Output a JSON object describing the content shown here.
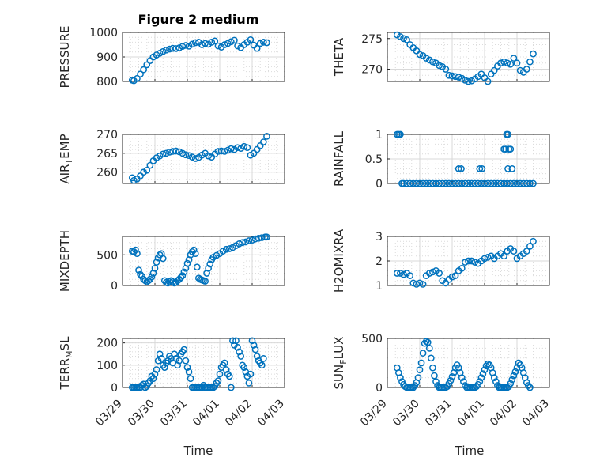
{
  "figure_title": "Figure 2 medium",
  "chart_data": [
    {
      "type": "scatter",
      "ylabel": "PRESSURE",
      "title": "Figure 2 medium",
      "xlim": [
        "03/29",
        "04/03"
      ],
      "ylim": [
        800,
        1000
      ],
      "yticks": [
        800,
        900,
        1000
      ],
      "grid": true,
      "minor_grid": true,
      "x": [
        0.3,
        0.35,
        0.45,
        0.55,
        0.65,
        0.75,
        0.85,
        0.95,
        1.05,
        1.15,
        1.25,
        1.35,
        1.45,
        1.55,
        1.65,
        1.75,
        1.85,
        1.95,
        2.05,
        2.15,
        2.25,
        2.35,
        2.45,
        2.55,
        2.65,
        2.75,
        2.85,
        2.95,
        3.05,
        3.15,
        3.25,
        3.35,
        3.45,
        3.55,
        3.65,
        3.75,
        3.85,
        3.95,
        4.05,
        4.15,
        4.25,
        4.35,
        4.45
      ],
      "y": [
        805,
        803,
        812,
        830,
        848,
        868,
        885,
        900,
        908,
        915,
        922,
        928,
        932,
        935,
        934,
        937,
        943,
        947,
        944,
        952,
        958,
        960,
        950,
        955,
        952,
        960,
        965,
        945,
        940,
        950,
        955,
        962,
        968,
        945,
        938,
        950,
        960,
        970,
        948,
        935,
        955,
        960,
        958
      ]
    },
    {
      "type": "scatter",
      "ylabel": "THETA",
      "xlim": [
        "03/29",
        "04/03"
      ],
      "ylim": [
        268,
        276
      ],
      "yticks": [
        270,
        275
      ],
      "grid": true,
      "minor_grid": true,
      "x": [
        0.3,
        0.4,
        0.5,
        0.6,
        0.7,
        0.8,
        0.9,
        1.0,
        1.1,
        1.2,
        1.3,
        1.4,
        1.5,
        1.6,
        1.7,
        1.8,
        1.9,
        2.0,
        2.1,
        2.2,
        2.3,
        2.4,
        2.5,
        2.6,
        2.7,
        2.8,
        2.9,
        3.0,
        3.1,
        3.2,
        3.3,
        3.4,
        3.5,
        3.6,
        3.7,
        3.8,
        3.9,
        4.0,
        4.1,
        4.2,
        4.3,
        4.4,
        4.5
      ],
      "y": [
        275.6,
        275.3,
        275,
        274.8,
        274,
        273.5,
        273,
        272.4,
        272.2,
        271.8,
        271.5,
        271.2,
        271,
        270.6,
        270.4,
        270,
        269,
        268.9,
        268.8,
        268.7,
        268.5,
        268.2,
        268,
        268.1,
        268.4,
        268.8,
        269.2,
        268.6,
        268,
        269.2,
        269.8,
        270.5,
        271,
        271.2,
        271,
        270.8,
        271.8,
        271,
        269.8,
        269.5,
        270,
        271.2,
        272.5
      ]
    },
    {
      "type": "scatter",
      "ylabel": "AIR_TEMP",
      "xlim": [
        "03/29",
        "04/03"
      ],
      "ylim": [
        257,
        270
      ],
      "yticks": [
        260,
        265,
        270
      ],
      "grid": true,
      "minor_grid": true,
      "x": [
        0.3,
        0.35,
        0.45,
        0.55,
        0.65,
        0.75,
        0.85,
        0.95,
        1.05,
        1.15,
        1.25,
        1.35,
        1.45,
        1.55,
        1.65,
        1.75,
        1.85,
        1.95,
        2.05,
        2.15,
        2.25,
        2.35,
        2.45,
        2.55,
        2.65,
        2.75,
        2.85,
        2.95,
        3.05,
        3.15,
        3.25,
        3.35,
        3.45,
        3.55,
        3.65,
        3.75,
        3.85,
        3.95,
        4.05,
        4.15,
        4.25,
        4.35,
        4.45
      ],
      "y": [
        258.5,
        257.8,
        258.2,
        259,
        260,
        260.5,
        261.8,
        263,
        263.8,
        264.3,
        264.8,
        265,
        265.3,
        265.5,
        265.6,
        265.4,
        265.0,
        264.6,
        264.4,
        264.0,
        263.6,
        263.9,
        264.5,
        265,
        264.3,
        264,
        264.8,
        265.5,
        265.6,
        265.5,
        265.8,
        266.2,
        266,
        266.5,
        266.3,
        266.8,
        266.5,
        264.5,
        265,
        266,
        267,
        268,
        269.5
      ]
    },
    {
      "type": "scatter",
      "ylabel": "RAINFALL",
      "xlim": [
        "03/29",
        "04/03"
      ],
      "ylim": [
        0,
        1
      ],
      "yticks": [
        0,
        0.5,
        1
      ],
      "grid": true,
      "minor_grid": true,
      "x": [
        0.3,
        0.35,
        0.4,
        0.45,
        0.5,
        0.6,
        0.7,
        0.8,
        0.9,
        1.0,
        1.1,
        1.2,
        1.3,
        1.4,
        1.5,
        1.6,
        1.7,
        1.8,
        1.9,
        2.0,
        2.1,
        2.2,
        2.3,
        2.4,
        2.5,
        2.6,
        2.7,
        2.8,
        2.9,
        3.0,
        3.1,
        3.2,
        3.3,
        3.4,
        3.5,
        3.6,
        3.7,
        3.8,
        3.9,
        4.0,
        4.1,
        4.2,
        4.3,
        4.4,
        4.5,
        2.2,
        2.28,
        2.85,
        2.92,
        3.6,
        3.65,
        3.68,
        3.72,
        3.75,
        3.8,
        3.85,
        3.72
      ],
      "y": [
        1,
        1,
        1,
        0,
        0,
        0,
        0,
        0,
        0,
        0,
        0,
        0,
        0,
        0,
        0,
        0,
        0,
        0,
        0,
        0,
        0,
        0,
        0,
        0,
        0,
        0,
        0,
        0,
        0,
        0,
        0,
        0,
        0,
        0,
        0,
        0,
        0,
        0,
        0,
        0,
        0,
        0,
        0,
        0,
        0,
        0.3,
        0.3,
        0.3,
        0.3,
        0.7,
        0.7,
        1,
        1,
        0.7,
        0.7,
        0.3,
        0.3
      ]
    },
    {
      "type": "scatter",
      "ylabel": "MIXDEPTH",
      "xlim": [
        "03/29",
        "04/03"
      ],
      "ylim": [
        0,
        800
      ],
      "yticks": [
        0,
        500
      ],
      "grid": true,
      "minor_grid": true,
      "x": [
        0.3,
        0.35,
        0.4,
        0.45,
        0.5,
        0.55,
        0.6,
        0.65,
        0.7,
        0.75,
        0.8,
        0.85,
        0.9,
        0.95,
        1.0,
        1.05,
        1.1,
        1.15,
        1.2,
        1.25,
        1.3,
        1.35,
        1.4,
        1.45,
        1.5,
        1.55,
        1.6,
        1.65,
        1.7,
        1.75,
        1.8,
        1.85,
        1.9,
        1.95,
        2.0,
        2.05,
        2.1,
        2.15,
        2.2,
        2.25,
        2.3,
        2.35,
        2.4,
        2.45,
        2.5,
        2.55,
        2.6,
        2.65,
        2.7,
        2.75,
        2.8,
        2.9,
        3.0,
        3.1,
        3.2,
        3.3,
        3.4,
        3.5,
        3.6,
        3.7,
        3.8,
        3.9,
        4.0,
        4.1,
        4.2,
        4.3,
        4.4,
        4.45
      ],
      "y": [
        560,
        550,
        580,
        520,
        250,
        180,
        150,
        100,
        80,
        60,
        80,
        100,
        140,
        200,
        280,
        380,
        450,
        500,
        520,
        440,
        80,
        50,
        40,
        60,
        80,
        60,
        40,
        50,
        80,
        100,
        130,
        160,
        220,
        280,
        360,
        420,
        500,
        550,
        580,
        520,
        300,
        120,
        100,
        90,
        80,
        70,
        200,
        280,
        350,
        420,
        460,
        490,
        520,
        560,
        590,
        600,
        620,
        650,
        680,
        700,
        710,
        730,
        740,
        760,
        770,
        780,
        790,
        790
      ]
    },
    {
      "type": "scatter",
      "ylabel": "H2OMIXRA",
      "xlim": [
        "03/29",
        "04/03"
      ],
      "ylim": [
        1,
        3
      ],
      "yticks": [
        1,
        2,
        3
      ],
      "grid": true,
      "minor_grid": true,
      "x": [
        0.3,
        0.4,
        0.5,
        0.6,
        0.7,
        0.8,
        0.9,
        1.0,
        1.1,
        1.2,
        1.3,
        1.4,
        1.5,
        1.6,
        1.7,
        1.8,
        1.9,
        2.0,
        2.1,
        2.2,
        2.3,
        2.4,
        2.5,
        2.6,
        2.7,
        2.8,
        2.9,
        3.0,
        3.1,
        3.2,
        3.3,
        3.4,
        3.5,
        3.6,
        3.7,
        3.8,
        3.9,
        4.0,
        4.1,
        4.2,
        4.3,
        4.4,
        4.5
      ],
      "y": [
        1.5,
        1.5,
        1.45,
        1.5,
        1.4,
        1.1,
        1.05,
        1.1,
        1.05,
        1.4,
        1.5,
        1.55,
        1.6,
        1.5,
        1.2,
        1.1,
        1.25,
        1.35,
        1.4,
        1.6,
        1.7,
        1.95,
        2.0,
        2.0,
        1.95,
        1.9,
        2.0,
        2.1,
        2.15,
        2.2,
        2.1,
        2.2,
        2.3,
        2.2,
        2.4,
        2.5,
        2.4,
        2.1,
        2.2,
        2.3,
        2.4,
        2.6,
        2.8
      ]
    },
    {
      "type": "scatter",
      "ylabel": "TERR_MSL",
      "xlim": [
        "03/29",
        "04/03"
      ],
      "ylim": [
        0,
        220
      ],
      "yticks": [
        0,
        100,
        200
      ],
      "grid": true,
      "minor_grid": true,
      "x": [
        0.3,
        0.35,
        0.4,
        0.45,
        0.5,
        0.55,
        0.6,
        0.65,
        0.7,
        0.75,
        0.8,
        0.85,
        0.9,
        0.95,
        1.0,
        1.05,
        1.1,
        1.15,
        1.2,
        1.25,
        1.3,
        1.35,
        1.4,
        1.45,
        1.5,
        1.55,
        1.6,
        1.65,
        1.7,
        1.75,
        1.8,
        1.85,
        1.9,
        1.95,
        2.0,
        2.05,
        2.1,
        2.15,
        2.2,
        2.25,
        2.3,
        2.35,
        2.4,
        2.45,
        2.5,
        2.55,
        2.6,
        2.65,
        2.7,
        2.75,
        2.8,
        2.85,
        2.9,
        2.95,
        3.0,
        3.05,
        3.1,
        3.15,
        3.2,
        3.25,
        3.3,
        3.35,
        3.4,
        3.45,
        3.5,
        3.55,
        3.6,
        3.65,
        3.7,
        3.75,
        3.8,
        3.85,
        3.9,
        3.95,
        4.0,
        4.05,
        4.1,
        4.15,
        4.2,
        4.25,
        4.3,
        4.35
      ],
      "y": [
        0,
        0,
        0,
        0,
        0,
        0,
        10,
        15,
        0,
        5,
        20,
        30,
        50,
        40,
        60,
        80,
        120,
        150,
        130,
        100,
        90,
        110,
        120,
        140,
        130,
        110,
        150,
        130,
        100,
        120,
        150,
        160,
        170,
        120,
        90,
        70,
        40,
        0,
        0,
        0,
        0,
        0,
        0,
        0,
        10,
        0,
        0,
        0,
        0,
        0,
        0,
        5,
        20,
        30,
        60,
        90,
        100,
        110,
        80,
        60,
        50,
        0,
        210,
        190,
        210,
        180,
        160,
        140,
        100,
        90,
        70,
        50,
        20,
        60,
        210,
        190,
        170,
        140,
        120,
        110,
        100,
        130
      ]
    },
    {
      "type": "scatter",
      "ylabel": "SUN_FLUX",
      "xlim": [
        "03/29",
        "04/03"
      ],
      "ylim": [
        0,
        500
      ],
      "yticks": [
        0,
        500
      ],
      "grid": true,
      "minor_grid": true,
      "x": [
        0.3,
        0.35,
        0.4,
        0.45,
        0.5,
        0.55,
        0.6,
        0.65,
        0.7,
        0.75,
        0.8,
        0.85,
        0.9,
        0.95,
        1.0,
        1.05,
        1.1,
        1.15,
        1.2,
        1.25,
        1.3,
        1.35,
        1.4,
        1.45,
        1.5,
        1.55,
        1.6,
        1.65,
        1.7,
        1.75,
        1.8,
        1.85,
        1.9,
        1.95,
        2.0,
        2.05,
        2.1,
        2.15,
        2.2,
        2.25,
        2.3,
        2.35,
        2.4,
        2.45,
        2.5,
        2.55,
        2.6,
        2.65,
        2.7,
        2.75,
        2.8,
        2.85,
        2.9,
        2.95,
        3.0,
        3.05,
        3.1,
        3.15,
        3.2,
        3.25,
        3.3,
        3.35,
        3.4,
        3.45,
        3.5,
        3.55,
        3.6,
        3.65,
        3.7,
        3.75,
        3.8,
        3.85,
        3.9,
        3.95,
        4.0,
        4.05,
        4.1,
        4.15,
        4.2,
        4.25,
        4.3,
        4.35,
        4.4
      ],
      "y": [
        200,
        150,
        100,
        60,
        30,
        10,
        0,
        0,
        0,
        0,
        0,
        20,
        50,
        100,
        180,
        250,
        350,
        450,
        470,
        460,
        400,
        300,
        200,
        120,
        60,
        20,
        0,
        0,
        0,
        0,
        0,
        10,
        40,
        70,
        110,
        150,
        200,
        230,
        200,
        150,
        100,
        60,
        20,
        0,
        0,
        0,
        0,
        0,
        0,
        10,
        30,
        60,
        100,
        140,
        180,
        220,
        240,
        230,
        200,
        150,
        100,
        60,
        20,
        0,
        0,
        0,
        0,
        0,
        0,
        10,
        40,
        80,
        120,
        160,
        200,
        250,
        230,
        200,
        150,
        100,
        50,
        20,
        0
      ]
    }
  ],
  "x_ticks": [
    "03/29",
    "03/30",
    "03/31",
    "04/01",
    "04/02",
    "04/03"
  ],
  "xlabel_left": "Time",
  "xlabel_right": "Time",
  "colors": {
    "marker": "#0072BD",
    "axis": "#262626",
    "grid": "#d9d9d9"
  }
}
